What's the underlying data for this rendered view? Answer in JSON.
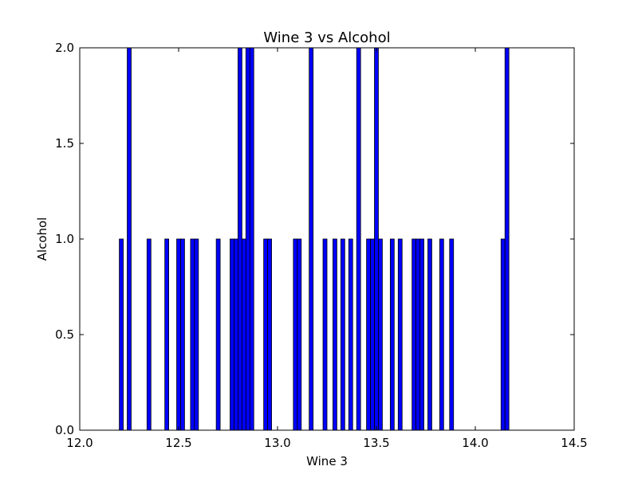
{
  "chart_data": {
    "type": "bar",
    "title": "Wine 3 vs Alcohol",
    "xlabel": "Wine 3",
    "ylabel": "Alcohol",
    "xlim": [
      12.0,
      14.5
    ],
    "ylim": [
      0.0,
      2.0
    ],
    "xticks": [
      "12.0",
      "12.5",
      "13.0",
      "13.5",
      "14.0",
      "14.5"
    ],
    "yticks": [
      "0.0",
      "0.5",
      "1.0",
      "1.5",
      "2.0"
    ],
    "bar_width": 0.02,
    "grid": false,
    "colors": {
      "bar": "#0000ff",
      "edge": "#000000"
    },
    "bars": [
      {
        "x": 12.2,
        "y": 1
      },
      {
        "x": 12.24,
        "y": 2
      },
      {
        "x": 12.34,
        "y": 1
      },
      {
        "x": 12.43,
        "y": 1
      },
      {
        "x": 12.49,
        "y": 1
      },
      {
        "x": 12.51,
        "y": 1
      },
      {
        "x": 12.56,
        "y": 1
      },
      {
        "x": 12.58,
        "y": 1
      },
      {
        "x": 12.69,
        "y": 1
      },
      {
        "x": 12.76,
        "y": 1
      },
      {
        "x": 12.78,
        "y": 1
      },
      {
        "x": 12.8,
        "y": 2
      },
      {
        "x": 12.82,
        "y": 1
      },
      {
        "x": 12.84,
        "y": 2
      },
      {
        "x": 12.86,
        "y": 2
      },
      {
        "x": 12.93,
        "y": 1
      },
      {
        "x": 12.95,
        "y": 1
      },
      {
        "x": 13.08,
        "y": 1
      },
      {
        "x": 13.1,
        "y": 1
      },
      {
        "x": 13.16,
        "y": 2
      },
      {
        "x": 13.23,
        "y": 1
      },
      {
        "x": 13.28,
        "y": 1
      },
      {
        "x": 13.32,
        "y": 1
      },
      {
        "x": 13.36,
        "y": 1
      },
      {
        "x": 13.4,
        "y": 2
      },
      {
        "x": 13.45,
        "y": 1
      },
      {
        "x": 13.47,
        "y": 1
      },
      {
        "x": 13.49,
        "y": 2
      },
      {
        "x": 13.51,
        "y": 1
      },
      {
        "x": 13.57,
        "y": 1
      },
      {
        "x": 13.61,
        "y": 1
      },
      {
        "x": 13.68,
        "y": 1
      },
      {
        "x": 13.7,
        "y": 1
      },
      {
        "x": 13.72,
        "y": 1
      },
      {
        "x": 13.76,
        "y": 1
      },
      {
        "x": 13.82,
        "y": 1
      },
      {
        "x": 13.87,
        "y": 1
      },
      {
        "x": 14.13,
        "y": 1
      },
      {
        "x": 14.15,
        "y": 2
      }
    ]
  }
}
